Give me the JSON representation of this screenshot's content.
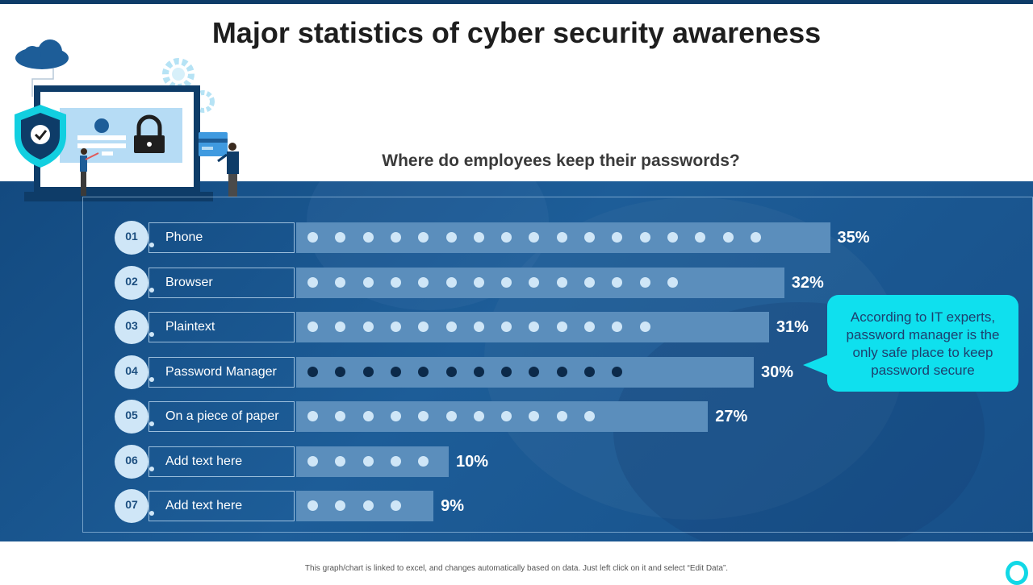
{
  "slide": {
    "title": "Major statistics of cyber security awareness",
    "footer_note": "This graph/chart is linked to excel, and changes automatically based on data. Just left click on it and select “Edit Data”.",
    "callout": "According to IT experts, password manager is the only safe place to keep password secure"
  },
  "colors": {
    "accent": "#0fe0ee",
    "panel": "#1a5690",
    "bar": "#5b8ebc",
    "dot_light": "#cfe6f7",
    "dot_highlight": "#0c2a4a"
  },
  "illustration": {
    "icons": [
      "cloud-icon",
      "gear-icon",
      "shield-check-icon",
      "laptop-icon",
      "padlock-icon",
      "user-icon",
      "credit-card-icon",
      "person-icon"
    ]
  },
  "chart_data": {
    "type": "bar",
    "orientation": "horizontal",
    "title": "Where do employees keep their passwords?",
    "categories": [
      "Phone",
      "Browser",
      "Plaintext",
      "Password Manager",
      "On a piece of paper",
      "Add text here",
      "Add text here"
    ],
    "numbers": [
      "01",
      "02",
      "03",
      "04",
      "05",
      "06",
      "07"
    ],
    "values": [
      35,
      32,
      31,
      30,
      27,
      10,
      9
    ],
    "value_labels": [
      "35%",
      "32%",
      "31%",
      "30%",
      "27%",
      "10%",
      "9%"
    ],
    "dots": [
      17,
      14,
      13,
      12,
      11,
      5,
      4
    ],
    "highlighted_index": 3,
    "unit": "%"
  }
}
